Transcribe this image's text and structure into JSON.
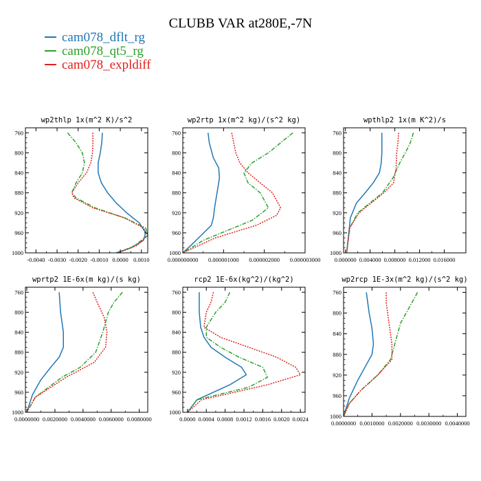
{
  "figure": {
    "title": "CLUBB VAR at280E,-7N"
  },
  "legend": [
    {
      "label": "cam078_dflt_rg",
      "color": "#1f77b4"
    },
    {
      "label": "cam078_qt5_rg",
      "color": "#2ca02c"
    },
    {
      "label": "cam078_expldiff",
      "color": "#e0201b"
    }
  ],
  "chart_data": [
    {
      "type": "line",
      "title": "wp2thlp  1x(m^2 K)/s^2",
      "xlim": [
        -0.0045,
        0.0013
      ],
      "ylim": [
        1000,
        750
      ],
      "xticks": [
        -0.004,
        -0.003,
        -0.002,
        -0.001,
        0.0,
        0.001
      ],
      "xtick_labels": [
        "-0.0040",
        "-0.0030",
        "-0.0020",
        "-0.0010",
        "0.0000",
        "0.0010"
      ],
      "yticks": [
        760,
        800,
        840,
        880,
        920,
        960,
        1000
      ],
      "ytick_labels": [
        "760",
        "800",
        "840",
        "880",
        "920",
        "960",
        "1000"
      ],
      "series": [
        {
          "name": "cam078_dflt_rg",
          "style": "solid",
          "x": [
            -0.00085,
            -0.00088,
            -0.00095,
            -0.00105,
            -0.00105,
            -0.0009,
            -0.0006,
            -0.0002,
            0.0003,
            0.0009,
            0.0012,
            0.0011,
            0.0005,
            -0.0002
          ],
          "y": [
            760,
            780,
            800,
            820,
            840,
            860,
            880,
            900,
            920,
            940,
            960,
            975,
            990,
            1000
          ]
        },
        {
          "name": "cam078_qt5_rg",
          "style": "dashdot",
          "x": [
            -0.0025,
            -0.0021,
            -0.0018,
            -0.0017,
            -0.0018,
            -0.0021,
            -0.0023,
            -0.0021,
            -0.0012,
            0.0002,
            0.0012,
            0.0013,
            0.0007,
            -0.0001
          ],
          "y": [
            760,
            780,
            800,
            820,
            840,
            860,
            880,
            890,
            910,
            930,
            950,
            965,
            985,
            1000
          ]
        },
        {
          "name": "cam078_expldiff",
          "style": "dotted",
          "x": [
            -0.0013,
            -0.0013,
            -0.00132,
            -0.0014,
            -0.0016,
            -0.002,
            -0.0023,
            -0.0022,
            -0.0013,
            0.0002,
            0.0011,
            0.0013,
            0.0008,
            -0.0001
          ],
          "y": [
            760,
            780,
            800,
            820,
            840,
            860,
            880,
            890,
            910,
            930,
            950,
            965,
            985,
            1000
          ]
        }
      ]
    },
    {
      "type": "line",
      "title": "wp2rtp  1x(m^2 kg)/(s^2 kg)",
      "xlim": [
        0.0,
        3e-06
      ],
      "ylim": [
        1000,
        750
      ],
      "xticks": [
        0.0,
        1e-06,
        2e-06,
        3e-06
      ],
      "xtick_labels": [
        "0.000000000",
        "0.000001000",
        "0.000002000",
        "0.000003000"
      ],
      "yticks": [
        760,
        800,
        840,
        880,
        920,
        960,
        1000
      ],
      "ytick_labels": [
        "760",
        "800",
        "840",
        "880",
        "920",
        "960",
        "1000"
      ],
      "series": [
        {
          "name": "cam078_dflt_rg",
          "style": "solid",
          "x": [
            6.2e-07,
            6.5e-07,
            7.5e-07,
            8.8e-07,
            9e-07,
            8.6e-07,
            8.2e-07,
            7.8e-07,
            7.5e-07,
            7e-07,
            4.5e-07,
            2e-07,
            0.0
          ],
          "y": [
            760,
            780,
            810,
            830,
            850,
            870,
            890,
            910,
            930,
            945,
            965,
            985,
            1000
          ]
        },
        {
          "name": "cam078_qt5_rg",
          "style": "dashdot",
          "x": [
            2.7e-06,
            2.4e-06,
            2.1e-06,
            1.7e-06,
            1.5e-06,
            1.6e-06,
            1.9e-06,
            2.1e-06,
            1.7e-06,
            1.1e-06,
            5e-07,
            0.0
          ],
          "y": [
            760,
            780,
            800,
            820,
            840,
            860,
            880,
            910,
            935,
            955,
            975,
            1000
          ]
        },
        {
          "name": "cam078_expldiff",
          "style": "dotted",
          "x": [
            1.2e-06,
            1.25e-06,
            1.3e-06,
            1.4e-06,
            1.6e-06,
            1.9e-06,
            2.2e-06,
            2.4e-06,
            2.3e-06,
            1.8e-06,
            8e-07,
            0.0
          ],
          "y": [
            760,
            780,
            800,
            820,
            840,
            860,
            880,
            910,
            925,
            945,
            970,
            1000
          ]
        }
      ]
    },
    {
      "type": "line",
      "title": "wpthlp2  1x(m K^2)/s",
      "xlim": [
        -0.0003,
        0.0195
      ],
      "ylim": [
        1000,
        750
      ],
      "xticks": [
        0.0,
        0.004,
        0.008,
        0.012,
        0.016
      ],
      "xtick_labels": [
        "0.000000",
        "0.004000",
        "0.008000",
        "0.012000",
        "0.016000"
      ],
      "yticks": [
        760,
        800,
        840,
        880,
        920,
        960,
        1000
      ],
      "ytick_labels": [
        "760",
        "800",
        "840",
        "880",
        "920",
        "960",
        "1000"
      ],
      "series": [
        {
          "name": "cam078_dflt_rg",
          "style": "solid",
          "x": [
            0.0059,
            0.0059,
            0.0058,
            0.0055,
            0.0045,
            0.0032,
            0.0018,
            0.0008,
            0.0002
          ],
          "y": [
            760,
            800,
            820,
            840,
            860,
            880,
            900,
            930,
            1000
          ]
        },
        {
          "name": "cam078_qt5_rg",
          "style": "dashdot",
          "x": [
            0.011,
            0.0105,
            0.0097,
            0.0088,
            0.0077,
            0.006,
            0.004,
            0.002,
            0.0007,
            0.0002
          ],
          "y": [
            760,
            780,
            800,
            820,
            850,
            880,
            900,
            920,
            950,
            1000
          ]
        },
        {
          "name": "cam078_expldiff",
          "style": "dotted",
          "x": [
            0.0086,
            0.0085,
            0.0083,
            0.0082,
            0.0078,
            0.0062,
            0.0042,
            0.0022,
            0.0007,
            0.0002
          ],
          "y": [
            760,
            780,
            800,
            830,
            860,
            880,
            900,
            920,
            950,
            1000
          ]
        }
      ]
    },
    {
      "type": "line",
      "title": "wprtp2  1E-6x(m kg)/(s kg)",
      "xlim": [
        -0.0001,
        0.0086
      ],
      "ylim": [
        1000,
        750
      ],
      "xticks": [
        0.0,
        0.002,
        0.004,
        0.006,
        0.008
      ],
      "xtick_labels": [
        "0.0000000",
        "0.0020000",
        "0.0040000",
        "0.0060000",
        "0.0080000"
      ],
      "yticks": [
        760,
        800,
        840,
        880,
        920,
        960,
        1000
      ],
      "ytick_labels": [
        "760",
        "800",
        "840",
        "880",
        "920",
        "960",
        "1000"
      ],
      "series": [
        {
          "name": "cam078_dflt_rg",
          "style": "solid",
          "x": [
            0.0023,
            0.0024,
            0.0026,
            0.0026,
            0.0023,
            0.0017,
            0.001,
            0.0004,
            0.0
          ],
          "y": [
            760,
            800,
            840,
            870,
            890,
            910,
            935,
            965,
            1000
          ]
        },
        {
          "name": "cam078_qt5_rg",
          "style": "dashdot",
          "x": [
            0.0068,
            0.0062,
            0.0058,
            0.0054,
            0.0049,
            0.0038,
            0.0025,
            0.0006,
            0.0
          ],
          "y": [
            760,
            780,
            800,
            840,
            880,
            910,
            930,
            970,
            1000
          ]
        },
        {
          "name": "cam078_expldiff",
          "style": "dotted",
          "x": [
            0.0047,
            0.005,
            0.0055,
            0.0057,
            0.0056,
            0.0048,
            0.0028,
            0.0006,
            0.0
          ],
          "y": [
            760,
            780,
            810,
            840,
            870,
            900,
            930,
            970,
            1000
          ]
        }
      ]
    },
    {
      "type": "line",
      "title": "rcp2  1E-6x(kg^2)/(kg^2)",
      "xlim": [
        -0.0001,
        0.0025
      ],
      "ylim": [
        1000,
        750
      ],
      "xticks": [
        0.0,
        0.0004,
        0.0008,
        0.0012,
        0.0016,
        0.002,
        0.0024
      ],
      "xtick_labels": [
        "0.0000",
        "0.0004",
        "0.0008",
        "0.0012",
        "0.0016",
        "0.0020",
        "0.0024"
      ],
      "yticks": [
        760,
        800,
        840,
        880,
        920,
        960,
        1000
      ],
      "ytick_labels": [
        "760",
        "800",
        "840",
        "880",
        "920",
        "960",
        "1000"
      ],
      "series": [
        {
          "name": "cam078_dflt_rg",
          "style": "solid",
          "x": [
            0.00025,
            0.00025,
            0.00028,
            0.00035,
            0.0005,
            0.0008,
            0.00115,
            0.00125,
            0.0009,
            0.0002,
            0.0
          ],
          "y": [
            760,
            800,
            830,
            850,
            870,
            890,
            910,
            925,
            945,
            975,
            1000
          ]
        },
        {
          "name": "cam078_qt5_rg",
          "style": "dashdot",
          "x": [
            0.0009,
            0.0008,
            0.0006,
            0.0004,
            0.0004,
            0.0007,
            0.0011,
            0.0016,
            0.0017,
            0.0013,
            0.0002,
            0.0
          ],
          "y": [
            760,
            780,
            800,
            830,
            850,
            870,
            890,
            910,
            930,
            950,
            975,
            1000
          ]
        },
        {
          "name": "cam078_expldiff",
          "style": "dotted",
          "x": [
            0.00055,
            0.0005,
            0.0004,
            0.00035,
            0.0007,
            0.0013,
            0.0019,
            0.0023,
            0.0024,
            0.0017,
            0.0003,
            0.0
          ],
          "y": [
            760,
            780,
            800,
            830,
            850,
            870,
            890,
            910,
            925,
            945,
            975,
            1000
          ]
        }
      ]
    },
    {
      "type": "line",
      "title": "wp2rcp  1E-3x(m^2 kg)/(s^2 kg)",
      "xlim": [
        0.0,
        0.0043
      ],
      "ylim": [
        1000,
        750
      ],
      "xticks": [
        0.0,
        0.001,
        0.002,
        0.003,
        0.004
      ],
      "xtick_labels": [
        "0.0000000",
        "0.0010000",
        "0.0020000",
        "0.0030000",
        "0.0040000"
      ],
      "yticks": [
        760,
        800,
        840,
        880,
        920,
        960,
        1000
      ],
      "ytick_labels": [
        "760",
        "800",
        "840",
        "880",
        "920",
        "960",
        "1000"
      ],
      "series": [
        {
          "name": "cam078_dflt_rg",
          "style": "solid",
          "x": [
            0.0008,
            0.0009,
            0.001,
            0.00105,
            0.001,
            0.0008,
            0.0005,
            0.0002,
            0.0
          ],
          "y": [
            760,
            800,
            830,
            860,
            880,
            900,
            930,
            965,
            1000
          ]
        },
        {
          "name": "cam078_qt5_rg",
          "style": "dashdot",
          "x": [
            0.0026,
            0.0024,
            0.002,
            0.0018,
            0.00165,
            0.0012,
            0.0006,
            0.0002,
            0.0
          ],
          "y": [
            760,
            780,
            820,
            860,
            890,
            920,
            950,
            975,
            1000
          ]
        },
        {
          "name": "cam078_expldiff",
          "style": "dotted",
          "x": [
            0.0015,
            0.0015,
            0.0016,
            0.0017,
            0.0017,
            0.0012,
            0.0006,
            0.0002,
            0.0
          ],
          "y": [
            760,
            780,
            820,
            860,
            890,
            920,
            950,
            975,
            1000
          ]
        }
      ]
    }
  ]
}
